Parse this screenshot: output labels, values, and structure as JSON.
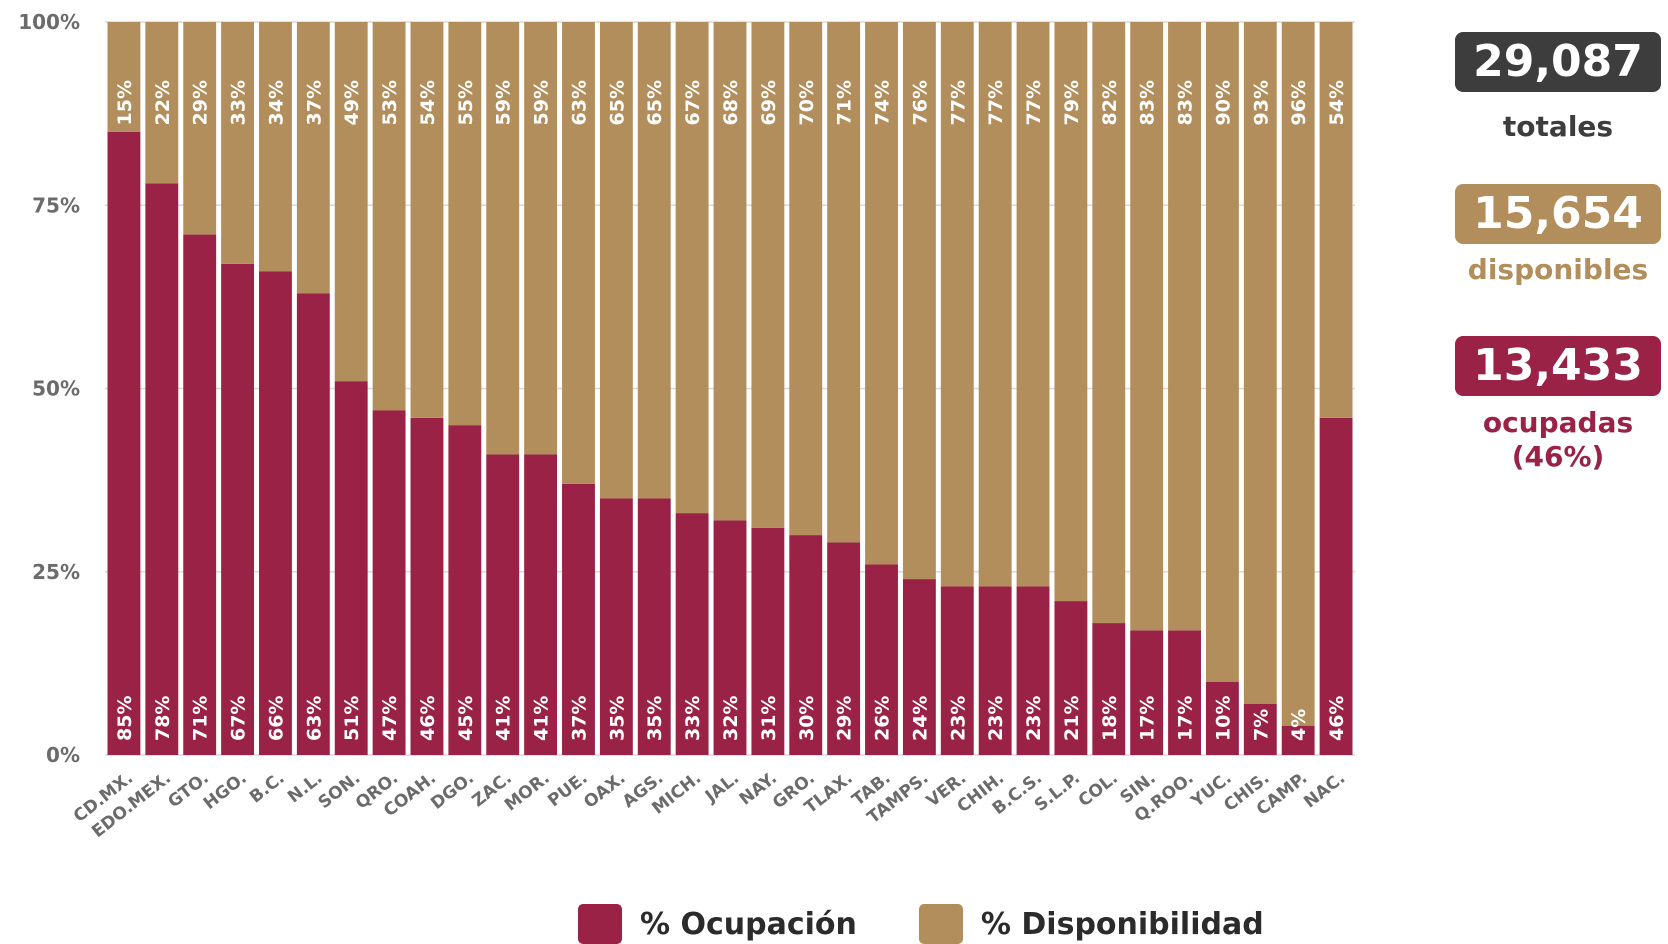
{
  "chart_data": {
    "type": "bar",
    "stacked": true,
    "orientation": "vertical",
    "categories": [
      "CD.MX.",
      "EDO.MEX.",
      "GTO.",
      "HGO.",
      "B.C.",
      "N.L.",
      "SON.",
      "QRO.",
      "COAH.",
      "DGO.",
      "ZAC.",
      "MOR.",
      "PUE.",
      "OAX.",
      "AGS.",
      "MICH.",
      "JAL.",
      "NAY.",
      "GRO.",
      "TLAX.",
      "TAB.",
      "TAMPS.",
      "VER.",
      "CHIH.",
      "B.C.S.",
      "S.L.P.",
      "COL.",
      "SIN.",
      "Q.ROO.",
      "YUC.",
      "CHIS.",
      "CAMP.",
      "NAC."
    ],
    "series": [
      {
        "name": "% Ocupación",
        "color": "#9b2247",
        "values": [
          85,
          78,
          71,
          67,
          66,
          63,
          51,
          47,
          46,
          45,
          41,
          41,
          37,
          35,
          35,
          33,
          32,
          31,
          30,
          29,
          26,
          24,
          23,
          23,
          23,
          21,
          18,
          17,
          17,
          10,
          7,
          4,
          46
        ],
        "labels": [
          "85%",
          "78%",
          "71%",
          "67%",
          "66%",
          "63%",
          "51%",
          "47%",
          "46%",
          "45%",
          "41%",
          "41%",
          "37%",
          "35%",
          "35%",
          "33%",
          "32%",
          "31%",
          "30%",
          "29%",
          "26%",
          "24%",
          "23%",
          "23%",
          "23%",
          "21%",
          "18%",
          "17%",
          "17%",
          "10%",
          "7%",
          "4%",
          "46%"
        ]
      },
      {
        "name": "% Disponibilidad",
        "color": "#b28e5c",
        "values": [
          15,
          22,
          29,
          33,
          34,
          37,
          49,
          53,
          54,
          55,
          59,
          59,
          63,
          65,
          65,
          67,
          68,
          69,
          70,
          71,
          74,
          76,
          77,
          77,
          77,
          79,
          82,
          83,
          83,
          90,
          93,
          96,
          54
        ],
        "labels": [
          "15%",
          "22%",
          "29%",
          "33%",
          "34%",
          "37%",
          "49%",
          "53%",
          "54%",
          "55%",
          "59%",
          "59%",
          "63%",
          "65%",
          "65%",
          "67%",
          "68%",
          "69%",
          "70%",
          "71%",
          "74%",
          "76%",
          "77%",
          "77%",
          "77%",
          "79%",
          "82%",
          "83%",
          "83%",
          "90%",
          "93%",
          "96%",
          "54%"
        ]
      }
    ],
    "ylim": [
      0,
      100
    ],
    "y_ticks": [
      0,
      25,
      50,
      75,
      100
    ],
    "y_tick_labels": [
      "0%",
      "25%",
      "50%",
      "75%",
      "100%"
    ],
    "grid": true,
    "legend": "bottom"
  },
  "summary": {
    "total_value": "29,087",
    "total_label": "totales",
    "available_value": "15,654",
    "available_label": "disponibles",
    "occupied_value": "13,433",
    "occupied_label": "ocupadas",
    "occupied_pct": "(46%)"
  },
  "legend": {
    "occupation": "% Ocupación",
    "availability": "% Disponibilidad"
  }
}
